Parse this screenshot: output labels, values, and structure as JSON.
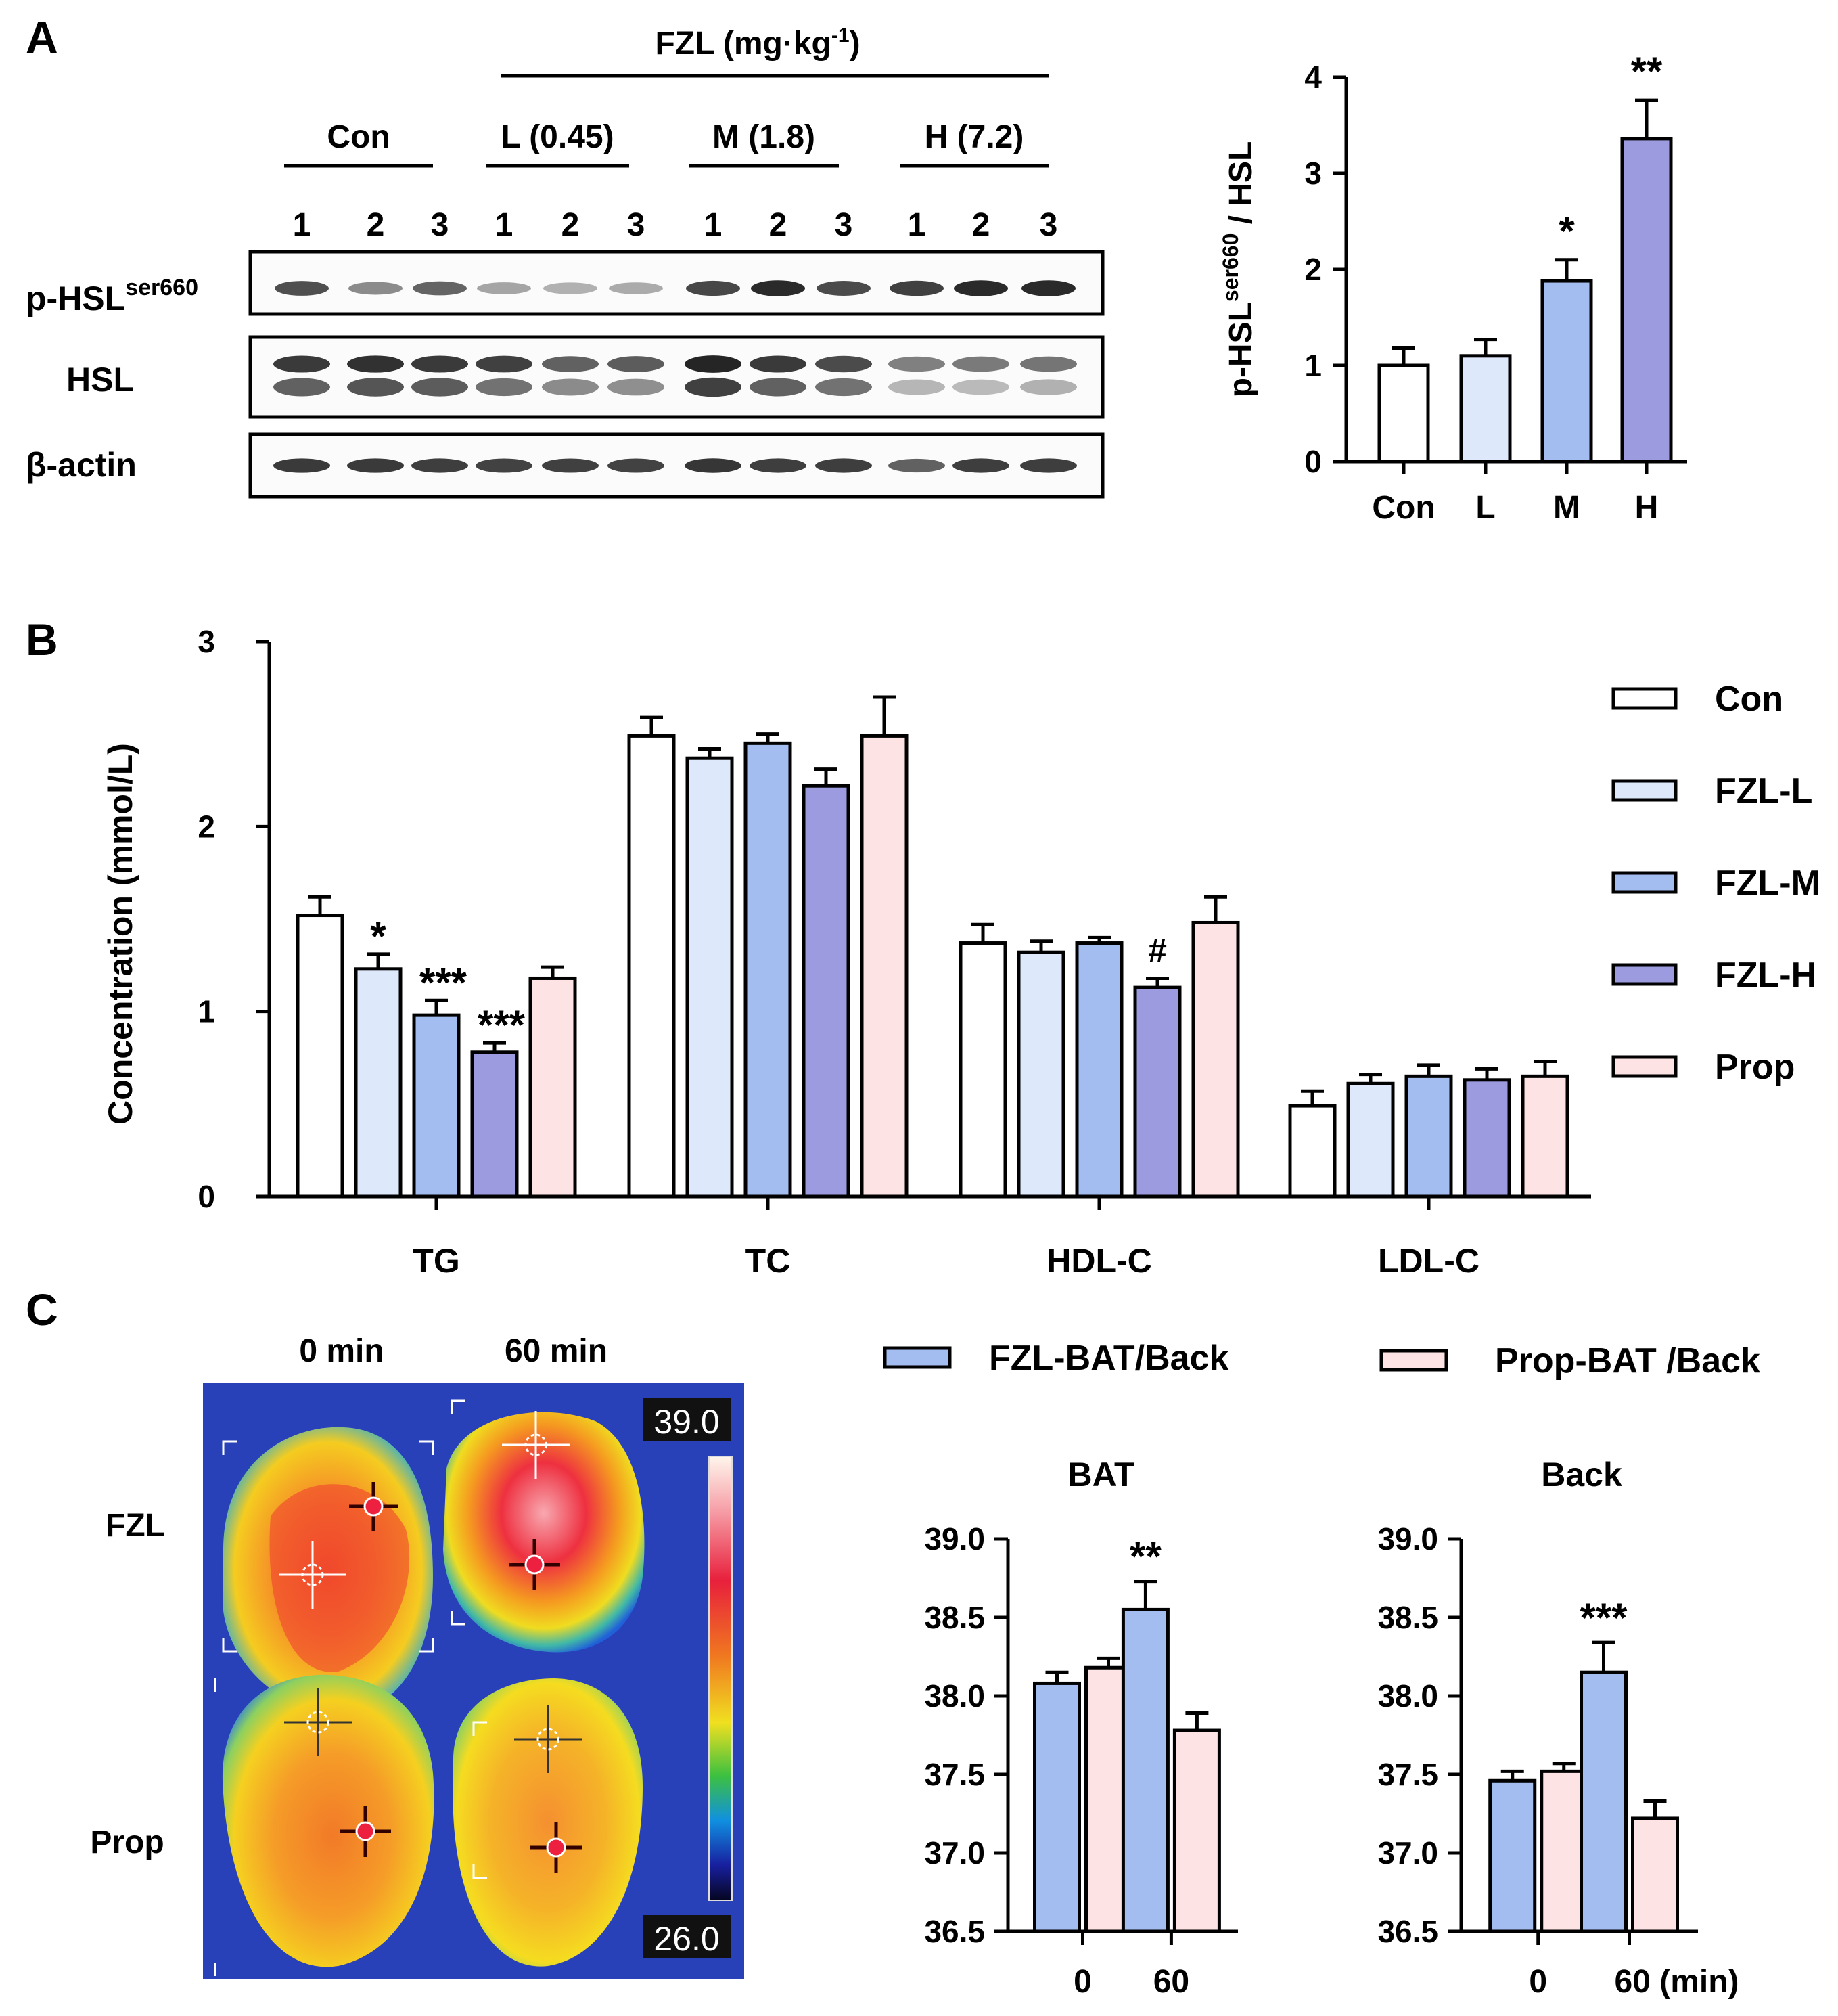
{
  "panels": {
    "A": "A",
    "B": "B",
    "C": "C"
  },
  "colors": {
    "con": "#ffffff",
    "fzl_l": "#dde8fa",
    "fzl_m": "#a4bdf0",
    "fzl_h": "#9c9be0",
    "prop": "#fde3e3",
    "bat_fzl": "#a4bdf0",
    "bat_prop": "#fde3e3"
  },
  "blot": {
    "header": "FZL (mg·kg",
    "header_sup": "-1",
    "header_close": ")",
    "groups": [
      "Con",
      "L (0.45)",
      "M (1.8)",
      "H (7.2)"
    ],
    "lanes": [
      "1",
      "2",
      "3",
      "1",
      "2",
      "3",
      "1",
      "2",
      "3",
      "1",
      "2",
      "3"
    ],
    "row_labels": [
      {
        "main": "p-HSL",
        "sup": "ser660"
      },
      {
        "main": "HSL",
        "sup": ""
      },
      {
        "main": "β-actin",
        "sup": ""
      }
    ],
    "intensity": {
      "phsl": [
        0.78,
        0.5,
        0.68,
        0.38,
        0.32,
        0.35,
        0.82,
        0.95,
        0.8,
        0.85,
        0.95,
        0.95
      ],
      "hsl_upper": [
        0.88,
        0.92,
        0.88,
        0.85,
        0.7,
        0.72,
        0.98,
        0.88,
        0.8,
        0.55,
        0.58,
        0.6
      ],
      "hsl_lower": [
        0.7,
        0.75,
        0.72,
        0.62,
        0.5,
        0.48,
        0.85,
        0.7,
        0.62,
        0.3,
        0.28,
        0.32
      ],
      "actin": [
        0.88,
        0.88,
        0.86,
        0.84,
        0.85,
        0.84,
        0.9,
        0.86,
        0.86,
        0.7,
        0.86,
        0.86
      ]
    }
  },
  "heatmap": {
    "col_labels": [
      "0 min",
      "60 min"
    ],
    "row_labels": [
      "FZL",
      "Prop"
    ],
    "scale_max": "39.0",
    "scale_min": "26.0"
  },
  "chart_data": [
    {
      "id": "A-bar",
      "type": "bar",
      "categories": [
        "Con",
        "L",
        "M",
        "H"
      ],
      "values": [
        1.0,
        1.1,
        1.88,
        3.36
      ],
      "errors": [
        0.18,
        0.17,
        0.22,
        0.4
      ],
      "significance": [
        "",
        "",
        "*",
        "**"
      ],
      "ylabel": "p-HSL",
      "ylabel_sup": "ser660",
      "ylabel_tail": " / HSL",
      "ylim": [
        0,
        4
      ],
      "yticks": [
        0,
        1,
        2,
        3,
        4
      ]
    },
    {
      "id": "B-grouped",
      "type": "bar",
      "categories": [
        "TG",
        "TC",
        "HDL-C",
        "LDL-C"
      ],
      "series": [
        {
          "name": "Con",
          "values": [
            1.52,
            2.49,
            1.37,
            0.49
          ],
          "errors": [
            0.1,
            0.1,
            0.1,
            0.08
          ]
        },
        {
          "name": "FZL-L",
          "values": [
            1.23,
            2.37,
            1.32,
            0.61
          ],
          "errors": [
            0.08,
            0.05,
            0.06,
            0.05
          ]
        },
        {
          "name": "FZL-M",
          "values": [
            0.98,
            2.45,
            1.37,
            0.65
          ],
          "errors": [
            0.08,
            0.05,
            0.03,
            0.06
          ]
        },
        {
          "name": "FZL-H",
          "values": [
            0.78,
            2.22,
            1.13,
            0.63
          ],
          "errors": [
            0.05,
            0.09,
            0.05,
            0.06
          ]
        },
        {
          "name": "Prop",
          "values": [
            1.18,
            2.49,
            1.48,
            0.65
          ],
          "errors": [
            0.06,
            0.21,
            0.14,
            0.08
          ]
        }
      ],
      "significance": [
        {
          "category": "TG",
          "series": "FZL-L",
          "mark": "*"
        },
        {
          "category": "TG",
          "series": "FZL-M",
          "mark": "***"
        },
        {
          "category": "TG",
          "series": "FZL-H",
          "mark": "***"
        },
        {
          "category": "HDL-C",
          "series": "FZL-H",
          "mark": "#"
        }
      ],
      "ylabel": "Concentration (mmol/L)",
      "ylim": [
        0,
        3
      ],
      "yticks": [
        0,
        1,
        2,
        3
      ],
      "legend": "right"
    },
    {
      "id": "C-legend",
      "type": "bar",
      "legend_entries": [
        "FZL-BAT/Back",
        "Prop-BAT /Back"
      ],
      "legend": "top"
    },
    {
      "id": "C-BAT",
      "type": "bar",
      "title": "BAT",
      "categories": [
        "0",
        "60"
      ],
      "series": [
        {
          "values": [
            38.08,
            38.55
          ],
          "errors": [
            0.07,
            0.18
          ]
        },
        {
          "values": [
            38.18,
            37.78
          ],
          "errors": [
            0.06,
            0.11
          ]
        }
      ],
      "significance": [
        "",
        "**"
      ],
      "ylim": [
        36.5,
        39.0
      ],
      "yticks": [
        "36.5",
        "37.0",
        "37.5",
        "38.0",
        "38.5",
        "39.0"
      ]
    },
    {
      "id": "C-Back",
      "type": "bar",
      "title": "Back",
      "categories": [
        "0",
        "60"
      ],
      "xlabel_suffix": " (min)",
      "series": [
        {
          "values": [
            37.46,
            38.15
          ],
          "errors": [
            0.06,
            0.19
          ]
        },
        {
          "values": [
            37.52,
            37.22
          ],
          "errors": [
            0.05,
            0.11
          ]
        }
      ],
      "significance": [
        "",
        "***"
      ],
      "ylim": [
        36.5,
        39.0
      ],
      "yticks": [
        "36.5",
        "37.0",
        "37.5",
        "38.0",
        "38.5",
        "39.0"
      ]
    }
  ]
}
